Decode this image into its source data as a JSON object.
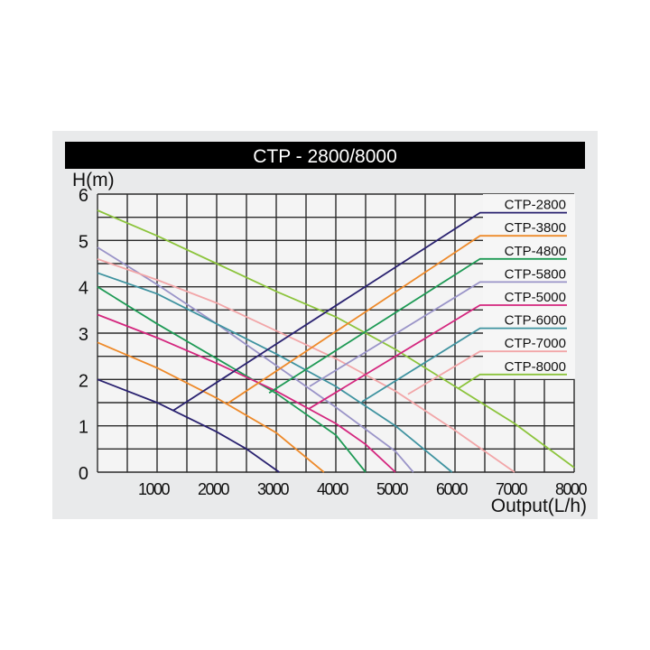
{
  "chart_data": {
    "type": "line",
    "title": "CTP - 2800/8000",
    "xlabel": "Output(L/h)",
    "ylabel": "H(m)",
    "xlim": [
      0,
      8000
    ],
    "ylim": [
      0,
      6
    ],
    "grid": true,
    "grid_step": {
      "x": 500,
      "y": 0.5
    },
    "x_ticks": [
      1000,
      2000,
      3000,
      4000,
      5000,
      6000,
      7000,
      8000
    ],
    "x_tick_labels": [
      "1000",
      "2000",
      "3000",
      "4000",
      "5000",
      "6000",
      "7000",
      "8000"
    ],
    "y_ticks": [
      0,
      1,
      2,
      3,
      4,
      5,
      6
    ],
    "y_tick_labels": [
      "0",
      "1",
      "2",
      "3",
      "4",
      "5",
      "6"
    ],
    "legend_placement": "top-right",
    "series": [
      {
        "name": "CTP-2800",
        "color": "#2a2270",
        "points": [
          [
            0,
            2.0
          ],
          [
            1000,
            1.5
          ],
          [
            2000,
            0.87
          ],
          [
            2500,
            0.5
          ],
          [
            3050,
            0
          ]
        ],
        "leader": [
          [
            1270,
            1.33
          ],
          [
            6420,
            5.65
          ]
        ]
      },
      {
        "name": "CTP-3800",
        "color": "#ee8a2a",
        "points": [
          [
            0,
            2.8
          ],
          [
            1000,
            2.25
          ],
          [
            2000,
            1.6
          ],
          [
            3000,
            0.85
          ],
          [
            3800,
            0
          ]
        ],
        "leader": [
          [
            2180,
            1.48
          ],
          [
            6420,
            5.16
          ]
        ]
      },
      {
        "name": "CTP-4800",
        "color": "#1e9a55",
        "points": [
          [
            0,
            4.0
          ],
          [
            1000,
            3.2
          ],
          [
            2000,
            2.45
          ],
          [
            3000,
            1.7
          ],
          [
            4000,
            0.8
          ],
          [
            4500,
            0
          ]
        ],
        "leader": [
          [
            2880,
            1.71
          ],
          [
            6420,
            4.68
          ]
        ]
      },
      {
        "name": "CTP-5800",
        "color": "#9a94c8",
        "points": [
          [
            0,
            4.85
          ],
          [
            1000,
            4.05
          ],
          [
            2000,
            3.2
          ],
          [
            3000,
            2.3
          ],
          [
            4000,
            1.4
          ],
          [
            5000,
            0.45
          ],
          [
            5300,
            0
          ]
        ],
        "leader": [
          [
            3560,
            1.85
          ],
          [
            6420,
            4.19
          ]
        ]
      },
      {
        "name": "CTP-5000",
        "color": "#d4267e",
        "points": [
          [
            0,
            3.4
          ],
          [
            1000,
            2.9
          ],
          [
            2000,
            2.35
          ],
          [
            3000,
            1.75
          ],
          [
            4000,
            1.05
          ],
          [
            4500,
            0.6
          ],
          [
            5000,
            0
          ]
        ],
        "leader": [
          [
            3550,
            1.37
          ],
          [
            6420,
            3.7
          ]
        ]
      },
      {
        "name": "CTP-6000",
        "color": "#3f93a0",
        "points": [
          [
            0,
            4.3
          ],
          [
            1000,
            3.85
          ],
          [
            2000,
            3.2
          ],
          [
            3000,
            2.55
          ],
          [
            4000,
            1.85
          ],
          [
            5000,
            1.0
          ],
          [
            5950,
            0
          ]
        ],
        "leader": [
          [
            4440,
            1.52
          ],
          [
            6420,
            3.14
          ]
        ]
      },
      {
        "name": "CTP-7000",
        "color": "#f2a6a8",
        "points": [
          [
            0,
            4.6
          ],
          [
            1000,
            4.15
          ],
          [
            2000,
            3.65
          ],
          [
            3000,
            3.05
          ],
          [
            4000,
            2.45
          ],
          [
            5000,
            1.75
          ],
          [
            6000,
            0.9
          ],
          [
            7000,
            0
          ]
        ],
        "leader": [
          [
            5210,
            1.68
          ],
          [
            6420,
            2.63
          ]
        ]
      },
      {
        "name": "CTP-8000",
        "color": "#8cc43c",
        "points": [
          [
            0,
            5.65
          ],
          [
            1000,
            5.1
          ],
          [
            2000,
            4.5
          ],
          [
            3000,
            3.9
          ],
          [
            4000,
            3.35
          ],
          [
            5000,
            2.65
          ],
          [
            6000,
            1.85
          ],
          [
            7000,
            1.05
          ],
          [
            8000,
            0.1
          ]
        ],
        "leader": [
          [
            6060,
            1.81
          ],
          [
            6420,
            2.16
          ]
        ]
      }
    ]
  }
}
